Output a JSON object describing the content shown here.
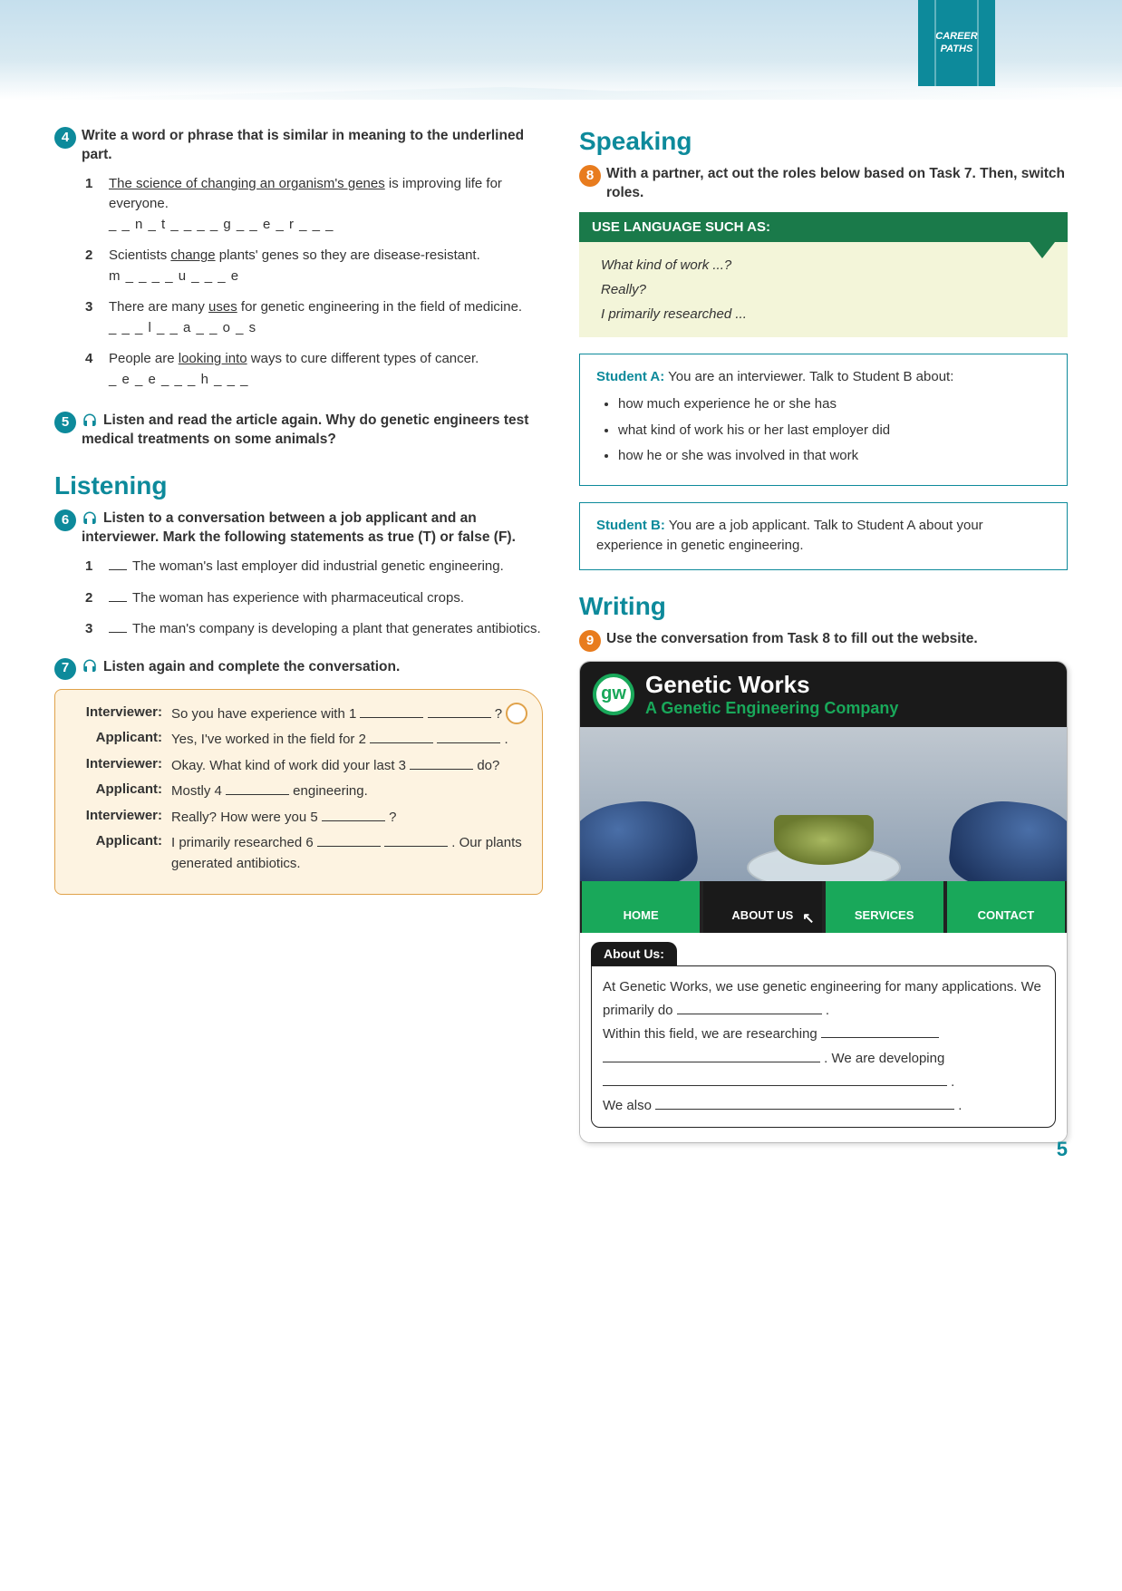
{
  "brand_tab": "CAREER\nPATHS",
  "colors": {
    "teal": "#0d8a9b",
    "orange": "#e87c1e",
    "green": "#1a7a4a",
    "nav_green": "#19a85a",
    "lang_bg": "#f3f5d9",
    "conv_bg": "#fdf3e1",
    "conv_border": "#e0a24a"
  },
  "left": {
    "task4": {
      "num": "4",
      "instruction": "Write a word or phrase that is similar in meaning to the underlined part.",
      "items": [
        {
          "n": "1",
          "pre": "",
          "underlined": "The science of changing an organism's genes",
          "post": " is improving life for everyone.",
          "blank": "_ _ n _ t _ _    _ _ g _ _ e _ r _ _ _"
        },
        {
          "n": "2",
          "pre": "Scientists ",
          "underlined": "change",
          "post": " plants' genes so they are disease-resistant.",
          "blank": "m _ _ _ _ u _ _ _ e"
        },
        {
          "n": "3",
          "pre": "There are many ",
          "underlined": "uses",
          "post": " for genetic engineering in the field of medicine.",
          "blank": "_ _ _ l _ _ a _ _ o _ s"
        },
        {
          "n": "4",
          "pre": "People are ",
          "underlined": "looking into",
          "post": " ways to cure different types of cancer.",
          "blank": "_ e _ e _ _ _ h _ _ _"
        }
      ]
    },
    "task5": {
      "num": "5",
      "instruction": "Listen and read the article again. Why do genetic engineers test medical treatments on some animals?"
    },
    "listening_title": "Listening",
    "task6": {
      "num": "6",
      "instruction": "Listen to a conversation between a job applicant and an interviewer. Mark the following statements as true (T) or false (F).",
      "items": [
        {
          "n": "1",
          "text": "The woman's last employer did industrial genetic engineering."
        },
        {
          "n": "2",
          "text": "The woman has experience with pharmaceutical crops."
        },
        {
          "n": "3",
          "text": "The man's company is developing a plant that generates antibiotics."
        }
      ]
    },
    "task7": {
      "num": "7",
      "instruction": "Listen again and complete the conversation.",
      "rows": [
        {
          "speaker": "Interviewer:",
          "text": "So you have experience with 1 _______ _______ ?"
        },
        {
          "speaker": "Applicant:",
          "text": "Yes, I've worked in the field for 2 _______ _______ ."
        },
        {
          "speaker": "Interviewer:",
          "text": "Okay. What kind of work did your last 3 _______ do?"
        },
        {
          "speaker": "Applicant:",
          "text": "Mostly 4 _______ engineering."
        },
        {
          "speaker": "Interviewer:",
          "text": "Really? How were you 5 _______ ?"
        },
        {
          "speaker": "Applicant:",
          "text": "I primarily researched 6 _______ _______ . Our plants generated antibiotics."
        }
      ]
    }
  },
  "right": {
    "speaking_title": "Speaking",
    "task8": {
      "num": "8",
      "instruction": "With a partner, act out the roles below based on Task 7. Then, switch roles."
    },
    "lang_header": "USE LANGUAGE SUCH AS:",
    "lang_lines": [
      "What kind of work ...?",
      "Really?",
      "I primarily researched ..."
    ],
    "roleA": {
      "who": "Student A:",
      "intro": " You are an interviewer. Talk to Student B about:",
      "bullets": [
        "how much experience he or she has",
        "what kind of work his or her last employer did",
        "how he or she was involved in that work"
      ]
    },
    "roleB": {
      "who": "Student B:",
      "intro": " You are a job applicant. Talk to Student A about your experience in genetic engineering."
    },
    "writing_title": "Writing",
    "task9": {
      "num": "9",
      "instruction": "Use the conversation from Task 8 to fill out the website."
    },
    "website": {
      "logo": "gw",
      "title": "Genetic Works",
      "subtitle": "A Genetic Engineering Company",
      "nav": [
        "HOME",
        "ABOUT US",
        "SERVICES",
        "CONTACT"
      ],
      "about_tab": "About Us:",
      "about_text_1": "At Genetic Works, we use genetic engineering for many applications. We primarily do ",
      "about_text_2": "Within this field, we are researching ",
      "about_text_3": " . We are developing",
      "about_text_4": "We also "
    }
  },
  "page_number": "5"
}
